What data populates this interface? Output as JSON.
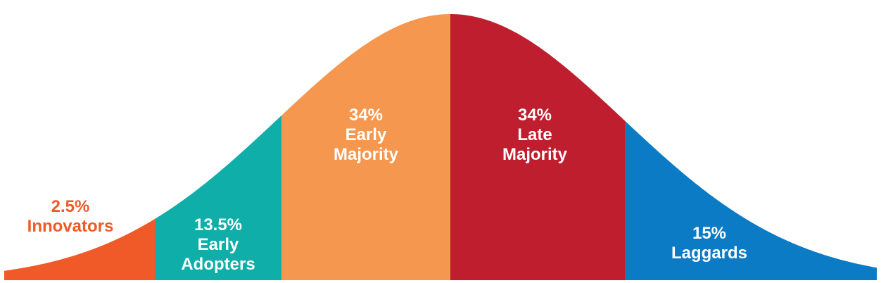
{
  "segments": [
    {
      "id": "innovators",
      "percent": "2.5%",
      "name_line1": "Innovators",
      "name_line2": "",
      "color": "#F05A28",
      "label_color": "#F05A28"
    },
    {
      "id": "early-adopters",
      "percent": "13.5%",
      "name_line1": "Early",
      "name_line2": "Adopters",
      "color": "#0FAEA8",
      "label_color": "#FFFFFF"
    },
    {
      "id": "early-majority",
      "percent": "34%",
      "name_line1": "Early",
      "name_line2": "Majority",
      "color": "#F5974E",
      "label_color": "#FFFFFF"
    },
    {
      "id": "late-majority",
      "percent": "34%",
      "name_line1": "Late",
      "name_line2": "Majority",
      "color": "#BE1E2D",
      "label_color": "#FFFFFF"
    },
    {
      "id": "laggards",
      "percent": "15%",
      "name_line1": "Laggards",
      "name_line2": "",
      "color": "#0A7BC4",
      "label_color": "#FFFFFF"
    }
  ]
}
